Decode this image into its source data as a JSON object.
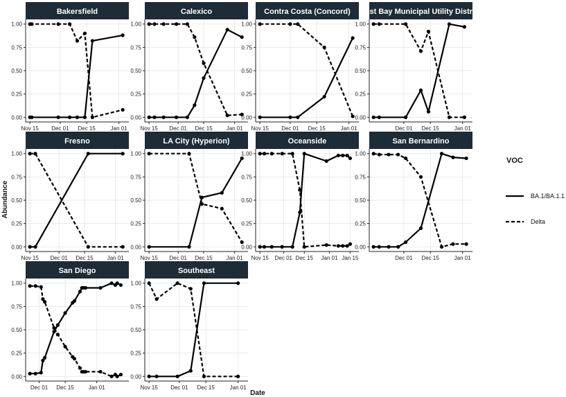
{
  "chart_data": {
    "type": "line",
    "xlabel": "Date",
    "ylabel": "Abundance",
    "ylim": [
      0,
      1
    ],
    "y_ticks": [
      "0.00",
      "0.25",
      "0.50",
      "0.75",
      "1.00"
    ],
    "legend": {
      "title": "VOC",
      "placement": "right",
      "entries": [
        {
          "name": "BA.1/BA.1.1",
          "style": "solid"
        },
        {
          "name": "Delta",
          "style": "dashed"
        }
      ]
    },
    "colors": {
      "strip_bg": "#1d2c36",
      "strip_text": "#ffffff",
      "line": "#000000",
      "grid": "#e3e3e3"
    },
    "panels": [
      {
        "title": "Bakersfield",
        "xlim": [
          0,
          50
        ],
        "x_ticks": [
          {
            "v": 0,
            "label": "Nov 15"
          },
          {
            "v": 16,
            "label": "Dec 01"
          },
          {
            "v": 30,
            "label": "Dec 15"
          },
          {
            "v": 47,
            "label": "Jan 01"
          }
        ],
        "series": [
          {
            "name": "BA.1/BA.1.1",
            "x": [
              0,
              1,
              15,
              21,
              25,
              29,
              33,
              49
            ],
            "y": [
              0,
              0,
              0,
              0,
              0,
              0,
              0.82,
              0.88
            ]
          },
          {
            "name": "Delta",
            "x": [
              0,
              1,
              15,
              21,
              25,
              29,
              33,
              49
            ],
            "y": [
              1,
              1,
              1,
              1,
              0.82,
              0.9,
              0.0,
              0.08
            ]
          }
        ]
      },
      {
        "title": "Calexico",
        "xlim": [
          0,
          52
        ],
        "x_ticks": [
          {
            "v": 0,
            "label": "Nov 15"
          },
          {
            "v": 16,
            "label": "Dec 01"
          },
          {
            "v": 30,
            "label": "Dec 15"
          },
          {
            "v": 47,
            "label": "Jan 01"
          }
        ],
        "series": [
          {
            "name": "BA.1/BA.1.1",
            "x": [
              0,
              3,
              8,
              15,
              21,
              25,
              30,
              43,
              51
            ],
            "y": [
              0,
              0,
              0,
              0,
              0,
              0.13,
              0.42,
              0.94,
              0.86
            ]
          },
          {
            "name": "Delta",
            "x": [
              0,
              3,
              8,
              15,
              21,
              25,
              30,
              43,
              51
            ],
            "y": [
              1,
              1,
              1,
              1,
              1,
              0.86,
              0.58,
              0.02,
              0.03
            ]
          }
        ]
      },
      {
        "title": "Contra Costa (Concord)",
        "xlim": [
          0,
          50
        ],
        "x_ticks": [
          {
            "v": 0,
            "label": "Nov 15"
          },
          {
            "v": 16,
            "label": "Dec 01"
          },
          {
            "v": 30,
            "label": "Dec 15"
          },
          {
            "v": 47,
            "label": "Jan 01"
          }
        ],
        "series": [
          {
            "name": "BA.1/BA.1.1",
            "x": [
              0,
              16,
              20,
              34,
              49
            ],
            "y": [
              0,
              0,
              0,
              0.22,
              0.85
            ]
          },
          {
            "name": "Delta",
            "x": [
              0,
              16,
              20,
              34,
              49
            ],
            "y": [
              1,
              1,
              1,
              0.75,
              0.01
            ]
          }
        ]
      },
      {
        "title": "East Bay Municipal Utility District",
        "xlim": [
          0,
          50
        ],
        "x_ticks": [
          {
            "v": 16,
            "label": "Dec 01"
          },
          {
            "v": 30,
            "label": "Dec 15"
          },
          {
            "v": 47,
            "label": "Jan 01"
          }
        ],
        "series": [
          {
            "name": "BA.1/BA.1.1",
            "x": [
              0,
              3,
              17,
              25,
              29,
              40,
              48
            ],
            "y": [
              0,
              0,
              0,
              0.29,
              0.06,
              1,
              0.97
            ]
          },
          {
            "name": "Delta",
            "x": [
              0,
              3,
              17,
              25,
              29,
              40,
              48
            ],
            "y": [
              1,
              1,
              1,
              0.71,
              0.92,
              0.0,
              0.0
            ]
          }
        ]
      },
      {
        "title": "Fresno",
        "xlim": [
          0,
          52
        ],
        "x_ticks": [
          {
            "v": 0,
            "label": "Nov 15"
          },
          {
            "v": 16,
            "label": "Dec 01"
          },
          {
            "v": 30,
            "label": "Dec 15"
          },
          {
            "v": 47,
            "label": "Jan 01"
          }
        ],
        "series": [
          {
            "name": "BA.1/BA.1.1",
            "x": [
              0,
              3,
              32,
              51
            ],
            "y": [
              0,
              0,
              1,
              1
            ]
          },
          {
            "name": "Delta",
            "x": [
              0,
              3,
              32,
              51
            ],
            "y": [
              1,
              1,
              0,
              0
            ]
          }
        ]
      },
      {
        "title": "LA City (Hyperion)",
        "xlim": [
          0,
          52
        ],
        "x_ticks": [
          {
            "v": 0,
            "label": "Nov 15"
          },
          {
            "v": 16,
            "label": "Dec 01"
          },
          {
            "v": 30,
            "label": "Dec 15"
          },
          {
            "v": 47,
            "label": "Jan 01"
          }
        ],
        "series": [
          {
            "name": "BA.1/BA.1.1",
            "x": [
              0,
              22,
              29,
              40,
              51
            ],
            "y": [
              0,
              0,
              0.53,
              0.58,
              0.95
            ]
          },
          {
            "name": "Delta",
            "x": [
              0,
              22,
              29,
              40,
              51
            ],
            "y": [
              1,
              1,
              0.46,
              0.41,
              0.05
            ]
          }
        ]
      },
      {
        "title": "Oceanside",
        "xlim": [
          0,
          64
        ],
        "x_ticks": [
          {
            "v": 0,
            "label": "Nov 15"
          },
          {
            "v": 16,
            "label": "Dec 01"
          },
          {
            "v": 30,
            "label": "Dec 15"
          },
          {
            "v": 47,
            "label": "Jan 01"
          },
          {
            "v": 61,
            "label": "Jan 15"
          }
        ],
        "series": [
          {
            "name": "BA.1/BA.1.1",
            "x": [
              0,
              3,
              8,
              15,
              22,
              27,
              30,
              45,
              53,
              56,
              59,
              61
            ],
            "y": [
              0,
              0,
              0,
              0,
              0,
              0.37,
              1,
              0.92,
              0.98,
              0.98,
              0.98,
              0.95
            ]
          },
          {
            "name": "Delta",
            "x": [
              0,
              3,
              8,
              15,
              22,
              27,
              30,
              45,
              53,
              56,
              59,
              61
            ],
            "y": [
              1,
              1,
              1,
              1,
              1,
              0.61,
              0.0,
              0.02,
              0.01,
              0.01,
              0.01,
              0.03
            ]
          }
        ]
      },
      {
        "title": "San Bernardino",
        "xlim": [
          0,
          50
        ],
        "x_ticks": [
          {
            "v": 16,
            "label": "Dec 01"
          },
          {
            "v": 30,
            "label": "Dec 15"
          },
          {
            "v": 47,
            "label": "Jan 01"
          }
        ],
        "series": [
          {
            "name": "BA.1/BA.1.1",
            "x": [
              0,
              3,
              8,
              13,
              17,
              25,
              36,
              42,
              49
            ],
            "y": [
              0,
              0,
              0,
              0,
              0.05,
              0.2,
              1,
              0.96,
              0.95
            ]
          },
          {
            "name": "Delta",
            "x": [
              0,
              3,
              8,
              13,
              17,
              25,
              36,
              42,
              49
            ],
            "y": [
              1,
              0.99,
              0.99,
              0.99,
              0.95,
              0.75,
              0.0,
              0.03,
              0.03
            ]
          }
        ]
      },
      {
        "title": "San Diego",
        "xlim": [
          0,
          51
        ],
        "x_ticks": [
          {
            "v": 5,
            "label": "Dec 01"
          },
          {
            "v": 19,
            "label": "Dec 15"
          },
          {
            "v": 36,
            "label": "Jan 01"
          }
        ],
        "series": [
          {
            "name": "BA.1/BA.1.1",
            "x": [
              0,
              3,
              6,
              7,
              8,
              13,
              15,
              19,
              23,
              24,
              27,
              28,
              29,
              30,
              38,
              44,
              46,
              47,
              49
            ],
            "y": [
              0.03,
              0.03,
              0.04,
              0.17,
              0.2,
              0.48,
              0.55,
              0.68,
              0.79,
              0.81,
              0.91,
              0.95,
              0.95,
              0.95,
              0.95,
              1,
              0.98,
              1,
              0.98
            ]
          },
          {
            "name": "Delta",
            "x": [
              0,
              3,
              6,
              7,
              8,
              13,
              15,
              19,
              23,
              24,
              27,
              28,
              29,
              30,
              38,
              44,
              46,
              47,
              49
            ],
            "y": [
              0.97,
              0.97,
              0.96,
              0.83,
              0.8,
              0.52,
              0.45,
              0.32,
              0.21,
              0.19,
              0.09,
              0.05,
              0.05,
              0.05,
              0.05,
              0.0,
              0.02,
              0.0,
              0.02
            ]
          }
        ]
      },
      {
        "title": "Southeast",
        "xlim": [
          0,
          50
        ],
        "x_ticks": [
          {
            "v": 0,
            "label": "Nov 15"
          },
          {
            "v": 16,
            "label": "Dec 01"
          },
          {
            "v": 30,
            "label": "Dec 15"
          },
          {
            "v": 47,
            "label": "Jan 01"
          }
        ],
        "series": [
          {
            "name": "BA.1/BA.1.1",
            "x": [
              0,
              4,
              15,
              22,
              29,
              47
            ],
            "y": [
              0,
              0,
              0,
              0.06,
              1,
              1
            ]
          },
          {
            "name": "Delta",
            "x": [
              0,
              4,
              15,
              22,
              29,
              47
            ],
            "y": [
              1,
              0.83,
              1,
              0.94,
              0.0,
              0.0
            ]
          }
        ]
      }
    ]
  }
}
